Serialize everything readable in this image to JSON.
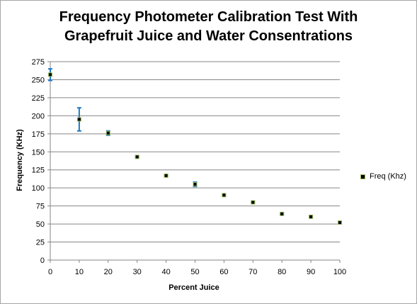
{
  "chart_data": {
    "type": "scatter",
    "title_line1": "Frequency Photometer Calibration Test With",
    "title_line2": "Grapefruit Juice and Water Consentrations",
    "xlabel": "Percent Juice",
    "ylabel": "Frequency (KHz)",
    "xlim": [
      0,
      100
    ],
    "ylim": [
      0,
      275
    ],
    "xticks": [
      0,
      10,
      20,
      30,
      40,
      50,
      60,
      70,
      80,
      90,
      100
    ],
    "yticks": [
      0,
      25,
      50,
      75,
      100,
      125,
      150,
      175,
      200,
      225,
      250,
      275
    ],
    "grid": "horizontal",
    "legend_position": "right",
    "series": [
      {
        "name": "Freq (Khz)",
        "marker_color": "#000000",
        "marker_edge": "#9bbb59",
        "errorbar_color": "#1f78c8",
        "x": [
          0,
          10,
          20,
          30,
          40,
          50,
          60,
          70,
          80,
          90,
          100
        ],
        "y": [
          257,
          195,
          176,
          143,
          117,
          105,
          90,
          80,
          64,
          60,
          52
        ],
        "error": [
          8,
          16,
          3,
          1,
          1,
          3,
          1,
          1,
          1,
          1,
          1
        ]
      }
    ]
  }
}
